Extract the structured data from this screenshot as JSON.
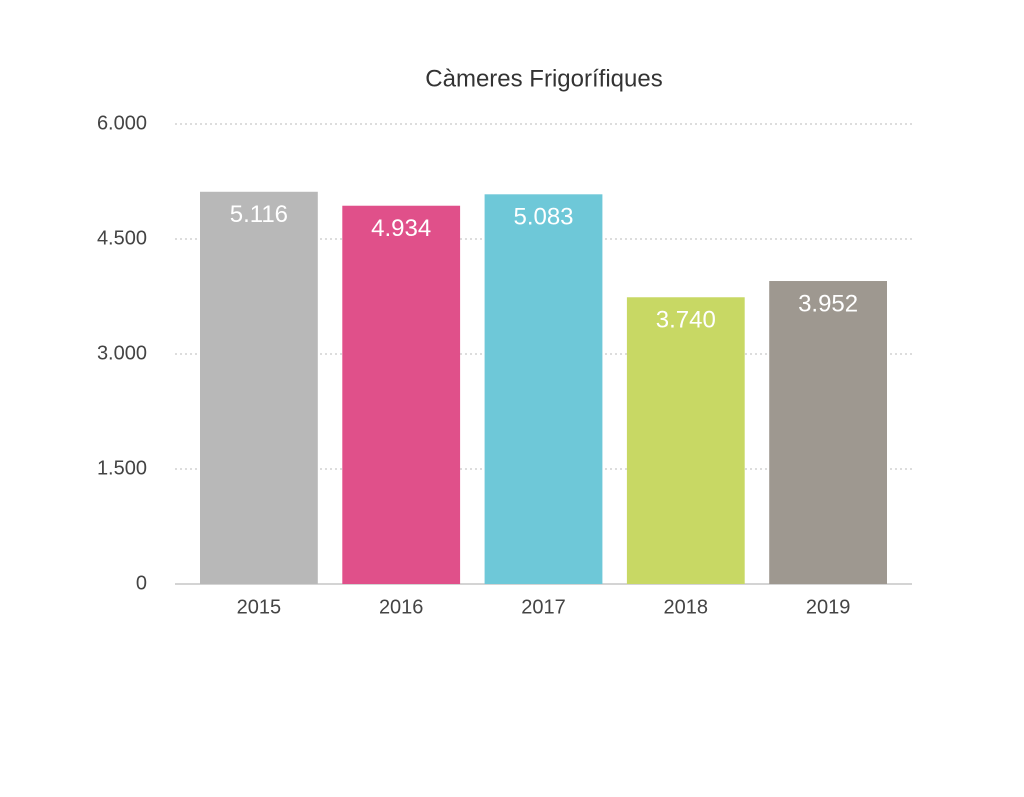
{
  "chart_data": {
    "type": "bar",
    "title": "Càmeres Frigorífiques",
    "categories": [
      "2015",
      "2016",
      "2017",
      "2018",
      "2019"
    ],
    "values": [
      5116,
      4934,
      5083,
      3740,
      3952
    ],
    "value_labels": [
      "5.116",
      "4.934",
      "5.083",
      "3.740",
      "3.952"
    ],
    "colors": [
      "#b8b8b8",
      "#e0508a",
      "#6ec8d8",
      "#c8d864",
      "#9e9890"
    ],
    "ylim": [
      0,
      6000
    ],
    "yticks": [
      0,
      {
        "value": 1500,
        "label": "1.500"
      },
      {
        "value": 3000,
        "label": "3.000"
      },
      {
        "value": 4500,
        "label": "4.500"
      },
      {
        "value": 6000,
        "label": "6.000"
      }
    ],
    "grid": true
  }
}
